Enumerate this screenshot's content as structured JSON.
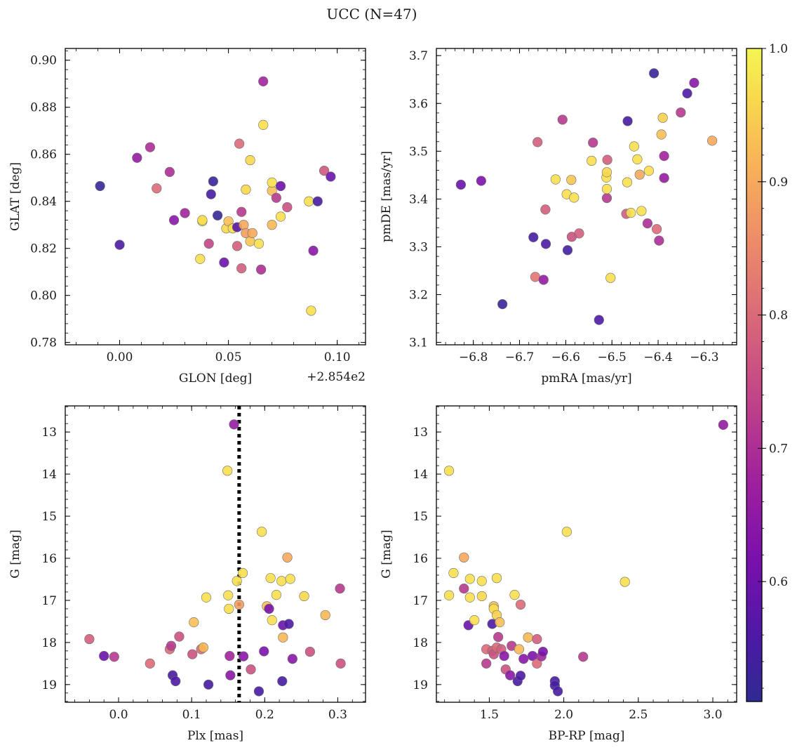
{
  "figure": {
    "title": "UCC (N=47)",
    "colorbar": {
      "cmap": "plasma",
      "vmin": 0.51,
      "vmax": 1.0,
      "ticks": [
        "0.6",
        "0.7",
        "0.8",
        "0.9",
        "1.0"
      ],
      "tick_values": [
        0.6,
        0.7,
        0.8,
        0.9,
        1.0
      ],
      "placement": "right"
    }
  },
  "chart_data": [
    {
      "type": "scatter",
      "id": "glon-glat",
      "xlabel": "GLON [deg]",
      "ylabel": "GLAT [deg]",
      "offset_text": "+2.854e2",
      "xlim": [
        -0.025,
        0.113
      ],
      "ylim": [
        0.779,
        0.905
      ],
      "xticks": [
        0.0,
        0.05,
        0.1
      ],
      "xticklabels": [
        "0.00",
        "0.05",
        "0.10"
      ],
      "yticks": [
        0.78,
        0.8,
        0.82,
        0.84,
        0.86,
        0.88,
        0.9
      ],
      "yticklabels": [
        "0.78",
        "0.80",
        "0.82",
        "0.84",
        "0.86",
        "0.88",
        "0.90"
      ],
      "points": [
        [
          -0.009,
          0.8465,
          0.52
        ],
        [
          0.0,
          0.8215,
          0.56
        ],
        [
          0.008,
          0.8585,
          0.66
        ],
        [
          0.014,
          0.863,
          0.7
        ],
        [
          0.017,
          0.8455,
          0.8
        ],
        [
          0.023,
          0.8525,
          0.7
        ],
        [
          0.025,
          0.832,
          0.64
        ],
        [
          0.03,
          0.835,
          0.68
        ],
        [
          0.037,
          0.8155,
          0.97
        ],
        [
          0.038,
          0.8315,
          0.96
        ],
        [
          0.038,
          0.832,
          0.97
        ],
        [
          0.041,
          0.822,
          0.74
        ],
        [
          0.042,
          0.843,
          0.55
        ],
        [
          0.043,
          0.8485,
          0.53
        ],
        [
          0.045,
          0.834,
          0.52
        ],
        [
          0.048,
          0.814,
          0.6
        ],
        [
          0.049,
          0.8285,
          0.96
        ],
        [
          0.05,
          0.8315,
          0.93
        ],
        [
          0.052,
          0.8285,
          0.97
        ],
        [
          0.054,
          0.829,
          0.58
        ],
        [
          0.054,
          0.821,
          0.78
        ],
        [
          0.055,
          0.8645,
          0.8
        ],
        [
          0.056,
          0.8355,
          0.72
        ],
        [
          0.056,
          0.8115,
          0.78
        ],
        [
          0.057,
          0.83,
          0.9
        ],
        [
          0.058,
          0.8265,
          0.88
        ],
        [
          0.058,
          0.845,
          0.96
        ],
        [
          0.06,
          0.8575,
          0.96
        ],
        [
          0.06,
          0.823,
          0.94
        ],
        [
          0.061,
          0.8265,
          0.9
        ],
        [
          0.064,
          0.822,
          0.97
        ],
        [
          0.065,
          0.811,
          0.7
        ],
        [
          0.066,
          0.891,
          0.68
        ],
        [
          0.066,
          0.8725,
          0.97
        ],
        [
          0.07,
          0.8445,
          0.93
        ],
        [
          0.07,
          0.848,
          0.97
        ],
        [
          0.07,
          0.83,
          0.92
        ],
        [
          0.072,
          0.8415,
          0.72
        ],
        [
          0.074,
          0.8335,
          0.97
        ],
        [
          0.074,
          0.8465,
          0.6
        ],
        [
          0.077,
          0.8375,
          0.76
        ],
        [
          0.087,
          0.84,
          0.97
        ],
        [
          0.088,
          0.7935,
          0.97
        ],
        [
          0.089,
          0.819,
          0.64
        ],
        [
          0.091,
          0.84,
          0.55
        ],
        [
          0.094,
          0.853,
          0.77
        ],
        [
          0.097,
          0.8505,
          0.6
        ]
      ]
    },
    {
      "type": "scatter",
      "id": "pm",
      "xlabel": "pmRA [mas/yr]",
      "ylabel": "pmDE [mas/yr]",
      "xlim": [
        -6.88,
        -6.23
      ],
      "ylim": [
        3.095,
        3.715
      ],
      "xticks": [
        -6.8,
        -6.7,
        -6.6,
        -6.5,
        -6.4,
        -6.3
      ],
      "xticklabels": [
        "−6.8",
        "−6.7",
        "−6.6",
        "−6.5",
        "−6.4",
        "−6.3"
      ],
      "yticks": [
        3.1,
        3.2,
        3.3,
        3.4,
        3.5,
        3.6,
        3.7
      ],
      "yticklabels": [
        "3.1",
        "3.2",
        "3.3",
        "3.4",
        "3.5",
        "3.6",
        "3.7"
      ],
      "points": [
        [
          -6.827,
          3.43,
          0.6
        ],
        [
          -6.783,
          3.438,
          0.62
        ],
        [
          -6.737,
          3.18,
          0.53
        ],
        [
          -6.67,
          3.32,
          0.55
        ],
        [
          -6.666,
          3.237,
          0.82
        ],
        [
          -6.661,
          3.519,
          0.78
        ],
        [
          -6.648,
          3.231,
          0.66
        ],
        [
          -6.644,
          3.378,
          0.78
        ],
        [
          -6.643,
          3.306,
          0.56
        ],
        [
          -6.622,
          3.441,
          0.97
        ],
        [
          -6.607,
          3.566,
          0.72
        ],
        [
          -6.598,
          3.41,
          0.97
        ],
        [
          -6.596,
          3.293,
          0.54
        ],
        [
          -6.588,
          3.44,
          0.94
        ],
        [
          -6.587,
          3.321,
          0.76
        ],
        [
          -6.582,
          3.403,
          0.97
        ],
        [
          -6.571,
          3.328,
          0.78
        ],
        [
          -6.544,
          3.48,
          0.97
        ],
        [
          -6.541,
          3.518,
          0.72
        ],
        [
          -6.528,
          3.147,
          0.56
        ],
        [
          -6.512,
          3.445,
          0.97
        ],
        [
          -6.511,
          3.456,
          0.96
        ],
        [
          -6.511,
          3.402,
          0.72
        ],
        [
          -6.511,
          3.421,
          0.97
        ],
        [
          -6.51,
          3.482,
          0.78
        ],
        [
          -6.503,
          3.235,
          0.97
        ],
        [
          -6.469,
          3.369,
          0.78
        ],
        [
          -6.467,
          3.435,
          0.97
        ],
        [
          -6.466,
          3.563,
          0.55
        ],
        [
          -6.459,
          3.371,
          0.97
        ],
        [
          -6.452,
          3.51,
          0.97
        ],
        [
          -6.445,
          3.483,
          0.97
        ],
        [
          -6.44,
          3.451,
          0.9
        ],
        [
          -6.436,
          3.375,
          0.97
        ],
        [
          -6.423,
          3.349,
          0.7
        ],
        [
          -6.42,
          3.459,
          0.97
        ],
        [
          -6.409,
          3.663,
          0.53
        ],
        [
          -6.403,
          3.337,
          0.8
        ],
        [
          -6.398,
          3.313,
          0.7
        ],
        [
          -6.393,
          3.535,
          0.93
        ],
        [
          -6.39,
          3.57,
          0.95
        ],
        [
          -6.387,
          3.49,
          0.68
        ],
        [
          -6.387,
          3.444,
          0.66
        ],
        [
          -6.351,
          3.581,
          0.72
        ],
        [
          -6.337,
          3.621,
          0.56
        ],
        [
          -6.322,
          3.643,
          0.64
        ],
        [
          -6.283,
          3.522,
          0.9
        ]
      ]
    },
    {
      "type": "scatter",
      "id": "plx-g",
      "xlabel": "Plx [mas]",
      "ylabel": "G [mag]",
      "xlim": [
        -0.073,
        0.338
      ],
      "ylim": [
        19.42,
        12.38
      ],
      "y_inverted": true,
      "xticks": [
        0.0,
        0.1,
        0.2,
        0.3
      ],
      "xticklabels": [
        "0.0",
        "0.1",
        "0.2",
        "0.3"
      ],
      "yticks": [
        13,
        14,
        15,
        16,
        17,
        18,
        19
      ],
      "yticklabels": [
        "13",
        "14",
        "15",
        "16",
        "17",
        "18",
        "19"
      ],
      "vline": {
        "x": 0.165,
        "style": "dotted"
      },
      "points": [
        [
          -0.04,
          17.92,
          0.78
        ],
        [
          -0.02,
          18.32,
          0.6
        ],
        [
          -0.006,
          18.34,
          0.72
        ],
        [
          0.043,
          18.5,
          0.8
        ],
        [
          0.07,
          18.16,
          0.8
        ],
        [
          0.072,
          18.08,
          0.72
        ],
        [
          0.074,
          18.78,
          0.55
        ],
        [
          0.078,
          18.92,
          0.56
        ],
        [
          0.083,
          17.86,
          0.76
        ],
        [
          0.101,
          18.28,
          0.76
        ],
        [
          0.103,
          17.52,
          0.93
        ],
        [
          0.113,
          18.16,
          0.8
        ],
        [
          0.116,
          18.12,
          0.92
        ],
        [
          0.12,
          16.93,
          0.97
        ],
        [
          0.123,
          19.0,
          0.55
        ],
        [
          0.149,
          13.92,
          0.97
        ],
        [
          0.15,
          16.88,
          0.97
        ],
        [
          0.151,
          17.2,
          0.97
        ],
        [
          0.152,
          18.32,
          0.68
        ],
        [
          0.153,
          18.78,
          0.64
        ],
        [
          0.158,
          12.82,
          0.66
        ],
        [
          0.162,
          16.54,
          0.97
        ],
        [
          0.165,
          17.1,
          0.88
        ],
        [
          0.17,
          16.35,
          0.97
        ],
        [
          0.181,
          18.64,
          0.76
        ],
        [
          0.192,
          19.16,
          0.55
        ],
        [
          0.196,
          15.37,
          0.97
        ],
        [
          0.199,
          18.21,
          0.62
        ],
        [
          0.203,
          17.14,
          0.93
        ],
        [
          0.206,
          17.2,
          0.62
        ],
        [
          0.208,
          16.47,
          0.97
        ],
        [
          0.21,
          17.47,
          0.97
        ],
        [
          0.216,
          16.87,
          0.97
        ],
        [
          0.223,
          16.54,
          0.97
        ],
        [
          0.224,
          18.92,
          0.55
        ],
        [
          0.225,
          17.59,
          0.6
        ],
        [
          0.225,
          17.88,
          0.92
        ],
        [
          0.231,
          15.98,
          0.9
        ],
        [
          0.233,
          17.56,
          0.56
        ],
        [
          0.235,
          16.49,
          0.97
        ],
        [
          0.238,
          18.39,
          0.64
        ],
        [
          0.254,
          16.9,
          0.96
        ],
        [
          0.262,
          18.22,
          0.76
        ],
        [
          0.283,
          17.35,
          0.92
        ],
        [
          0.303,
          16.72,
          0.72
        ],
        [
          0.304,
          18.5,
          0.76
        ],
        [
          0.171,
          18.33,
          0.64
        ]
      ]
    },
    {
      "type": "scatter",
      "id": "color-g",
      "xlabel": "BP-RP [mag]",
      "ylabel": "G [mag]",
      "xlim": [
        1.145,
        3.16
      ],
      "ylim": [
        19.42,
        12.38
      ],
      "y_inverted": true,
      "xticks": [
        1.5,
        2.0,
        2.5,
        3.0
      ],
      "xticklabels": [
        "1.5",
        "2.0",
        "2.5",
        "3.0"
      ],
      "yticks": [
        13,
        14,
        15,
        16,
        17,
        18,
        19
      ],
      "yticklabels": [
        "13",
        "14",
        "15",
        "16",
        "17",
        "18",
        "19"
      ],
      "points": [
        [
          1.23,
          13.92,
          0.97
        ],
        [
          1.23,
          16.88,
          0.97
        ],
        [
          1.26,
          16.35,
          0.97
        ],
        [
          1.33,
          15.98,
          0.9
        ],
        [
          1.33,
          16.72,
          0.72
        ],
        [
          1.36,
          17.59,
          0.6
        ],
        [
          1.37,
          16.49,
          0.97
        ],
        [
          1.37,
          16.93,
          0.97
        ],
        [
          1.4,
          17.47,
          0.97
        ],
        [
          1.45,
          16.9,
          0.96
        ],
        [
          1.45,
          16.54,
          0.97
        ],
        [
          1.48,
          18.16,
          0.8
        ],
        [
          1.48,
          18.5,
          0.72
        ],
        [
          1.52,
          17.56,
          0.56
        ],
        [
          1.52,
          18.2,
          0.78
        ],
        [
          1.53,
          17.14,
          0.93
        ],
        [
          1.53,
          17.2,
          0.97
        ],
        [
          1.53,
          18.28,
          0.76
        ],
        [
          1.55,
          16.47,
          0.97
        ],
        [
          1.55,
          17.35,
          0.95
        ],
        [
          1.55,
          18.12,
          0.8
        ],
        [
          1.56,
          17.87,
          0.72
        ],
        [
          1.57,
          17.52,
          0.93
        ],
        [
          1.58,
          18.16,
          0.78
        ],
        [
          1.6,
          18.32,
          0.64
        ],
        [
          1.61,
          18.64,
          0.76
        ],
        [
          1.64,
          18.78,
          0.64
        ],
        [
          1.65,
          18.08,
          0.72
        ],
        [
          1.67,
          16.87,
          0.97
        ],
        [
          1.69,
          18.92,
          0.55
        ],
        [
          1.7,
          18.16,
          0.92
        ],
        [
          1.71,
          18.79,
          0.56
        ],
        [
          1.71,
          17.1,
          0.8
        ],
        [
          1.73,
          18.39,
          0.64
        ],
        [
          1.76,
          17.88,
          0.92
        ],
        [
          1.79,
          18.32,
          0.62
        ],
        [
          1.82,
          17.92,
          0.78
        ],
        [
          1.82,
          18.5,
          0.8
        ],
        [
          1.85,
          18.33,
          0.68
        ],
        [
          1.86,
          18.22,
          0.62
        ],
        [
          1.94,
          18.92,
          0.55
        ],
        [
          1.94,
          19.02,
          0.55
        ],
        [
          1.96,
          19.16,
          0.55
        ],
        [
          2.02,
          15.37,
          0.97
        ],
        [
          2.13,
          18.34,
          0.72
        ],
        [
          2.41,
          16.56,
          0.97
        ],
        [
          3.07,
          12.83,
          0.66
        ]
      ]
    }
  ]
}
